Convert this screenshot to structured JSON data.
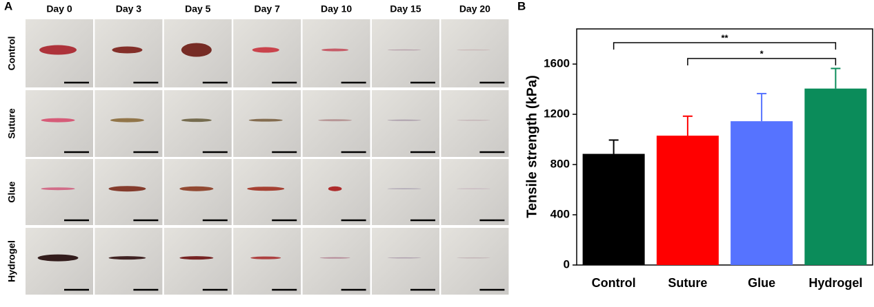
{
  "panel_a": {
    "label": "A",
    "columns": [
      "Day 0",
      "Day 3",
      "Day 5",
      "Day 7",
      "Day 10",
      "Day 15",
      "Day 20"
    ],
    "rows": [
      "Control",
      "Suture",
      "Glue",
      "Hydrogel"
    ]
  },
  "chart_data": {
    "type": "bar",
    "panel_label": "B",
    "y_label": "Tensile strength (kPa)",
    "categories": [
      "Control",
      "Suture",
      "Glue",
      "Hydrogel"
    ],
    "values": [
      885,
      1030,
      1145,
      1405
    ],
    "errors": [
      110,
      155,
      220,
      160
    ],
    "colors": [
      "#000000",
      "#ff0000",
      "#5673ff",
      "#0b8c5a"
    ],
    "ylim": [
      0,
      1880
    ],
    "yticks": [
      0,
      400,
      800,
      1200,
      1600
    ],
    "significance": [
      {
        "from": "Control",
        "to": "Hydrogel",
        "label": "**"
      },
      {
        "from": "Suture",
        "to": "Hydrogel",
        "label": "*"
      }
    ]
  }
}
